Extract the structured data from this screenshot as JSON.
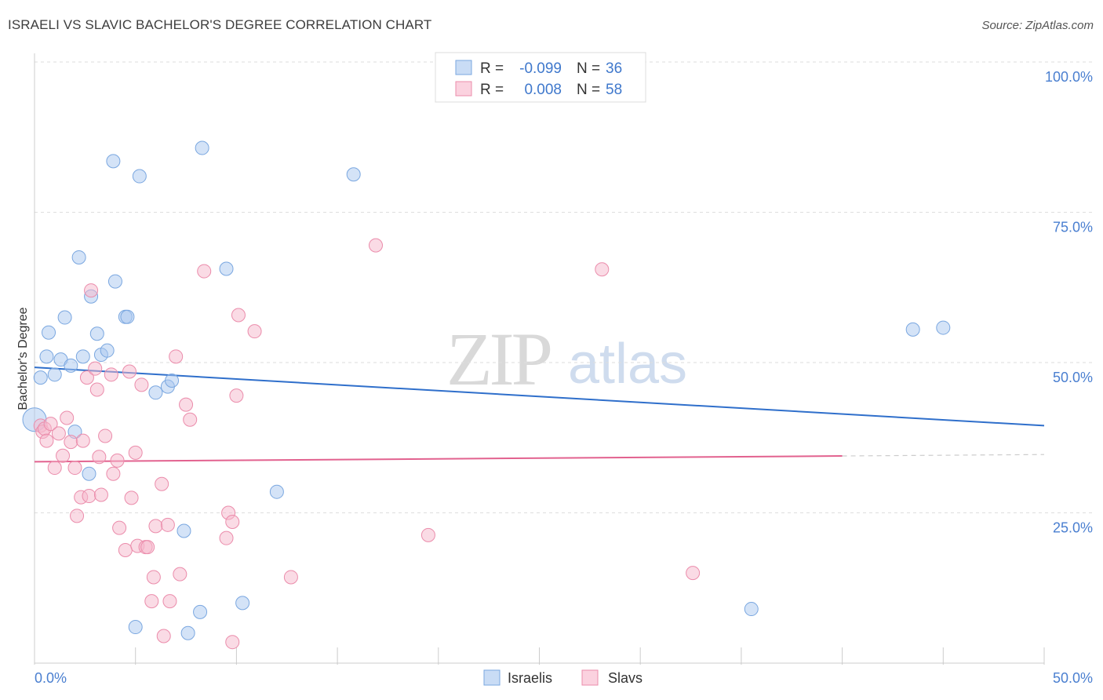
{
  "title": "ISRAELI VS SLAVIC BACHELOR'S DEGREE CORRELATION CHART",
  "source": "Source: ZipAtlas.com",
  "watermark": {
    "zip": "ZIP",
    "atlas": "atlas"
  },
  "legend": {
    "rows": [
      {
        "r_label": "R =",
        "r_value": "-0.099",
        "n_label": "N =",
        "n_value": "36"
      },
      {
        "r_label": "R =",
        "r_value": "0.008",
        "n_label": "N =",
        "n_value": "58"
      }
    ]
  },
  "colors": {
    "israelis_fill": "#a9c8f0",
    "israelis_stroke": "#7aa7e0",
    "israelis_line": "#2f6fcb",
    "slavs_fill": "#f5b8cc",
    "slavs_stroke": "#eb8cab",
    "slavs_line": "#e2628f",
    "grid": "#dedede",
    "tick_text": "#4a7fd0"
  },
  "chart_data": {
    "type": "scatter",
    "xlabel": "",
    "ylabel": "Bachelor's Degree",
    "xlim": [
      0,
      50
    ],
    "ylim": [
      0,
      100
    ],
    "x_tick_labels": [
      "0.0%",
      "50.0%"
    ],
    "y_ticks": [
      25,
      50,
      75,
      100
    ],
    "y_tick_labels": [
      "25.0%",
      "50.0%",
      "75.0%",
      "100.0%"
    ],
    "grid": true,
    "legend_position": "top-center",
    "series": [
      {
        "name": "Israelis",
        "points": [
          [
            0.0,
            40.5
          ],
          [
            0.3,
            47.5
          ],
          [
            0.6,
            51.0
          ],
          [
            0.7,
            55.0
          ],
          [
            1.0,
            48.0
          ],
          [
            1.3,
            50.5
          ],
          [
            1.5,
            57.5
          ],
          [
            1.8,
            49.5
          ],
          [
            2.0,
            38.5
          ],
          [
            2.2,
            67.5
          ],
          [
            2.4,
            51.0
          ],
          [
            2.7,
            31.5
          ],
          [
            2.8,
            61.0
          ],
          [
            3.1,
            54.8
          ],
          [
            3.3,
            51.3
          ],
          [
            3.6,
            52.0
          ],
          [
            3.9,
            83.5
          ],
          [
            4.0,
            63.5
          ],
          [
            4.5,
            57.6
          ],
          [
            4.6,
            57.6
          ],
          [
            5.2,
            81.0
          ],
          [
            5.0,
            6.0
          ],
          [
            6.0,
            45.0
          ],
          [
            6.6,
            46.0
          ],
          [
            6.8,
            47.0
          ],
          [
            7.4,
            22.0
          ],
          [
            7.6,
            5.0
          ],
          [
            8.2,
            8.5
          ],
          [
            8.3,
            85.7
          ],
          [
            9.5,
            65.6
          ],
          [
            10.3,
            10.0
          ],
          [
            12.0,
            28.5
          ],
          [
            15.8,
            81.3
          ],
          [
            35.5,
            9.0
          ],
          [
            43.5,
            55.5
          ],
          [
            45.0,
            55.8
          ]
        ]
      },
      {
        "name": "Slavs",
        "points": [
          [
            0.3,
            39.5
          ],
          [
            0.4,
            38.5
          ],
          [
            0.5,
            39.0
          ],
          [
            0.6,
            37.0
          ],
          [
            0.8,
            39.8
          ],
          [
            1.0,
            32.5
          ],
          [
            1.2,
            38.2
          ],
          [
            1.4,
            34.5
          ],
          [
            1.6,
            40.8
          ],
          [
            1.8,
            36.8
          ],
          [
            2.0,
            32.5
          ],
          [
            2.1,
            24.5
          ],
          [
            2.3,
            27.6
          ],
          [
            2.4,
            37.0
          ],
          [
            2.6,
            47.5
          ],
          [
            2.7,
            27.8
          ],
          [
            2.8,
            62.0
          ],
          [
            3.0,
            49.0
          ],
          [
            3.1,
            45.5
          ],
          [
            3.2,
            34.3
          ],
          [
            3.3,
            28.0
          ],
          [
            3.5,
            37.8
          ],
          [
            3.8,
            48.0
          ],
          [
            3.9,
            31.5
          ],
          [
            4.1,
            33.7
          ],
          [
            4.2,
            22.5
          ],
          [
            4.5,
            18.8
          ],
          [
            4.7,
            48.5
          ],
          [
            4.8,
            27.5
          ],
          [
            5.0,
            35.0
          ],
          [
            5.1,
            19.5
          ],
          [
            5.3,
            46.3
          ],
          [
            5.5,
            19.3
          ],
          [
            5.6,
            19.3
          ],
          [
            5.8,
            10.3
          ],
          [
            5.9,
            14.3
          ],
          [
            6.0,
            22.8
          ],
          [
            6.3,
            29.8
          ],
          [
            6.4,
            4.5
          ],
          [
            6.6,
            23.0
          ],
          [
            6.7,
            10.3
          ],
          [
            7.0,
            51.0
          ],
          [
            7.2,
            14.8
          ],
          [
            7.5,
            43.0
          ],
          [
            7.7,
            40.5
          ],
          [
            8.4,
            65.2
          ],
          [
            9.5,
            20.8
          ],
          [
            9.6,
            25.0
          ],
          [
            9.8,
            23.5
          ],
          [
            9.8,
            3.5
          ],
          [
            10.0,
            44.5
          ],
          [
            10.1,
            57.9
          ],
          [
            10.9,
            55.2
          ],
          [
            12.7,
            14.3
          ],
          [
            16.9,
            69.5
          ],
          [
            19.5,
            21.3
          ],
          [
            28.1,
            65.5
          ],
          [
            32.6,
            15.0
          ]
        ]
      }
    ],
    "trend_lines": [
      {
        "series": "Israelis",
        "x": [
          0,
          50
        ],
        "y": [
          49.2,
          39.5
        ]
      },
      {
        "series": "Slavs",
        "x": [
          0,
          50
        ],
        "y": [
          33.5,
          34.7
        ],
        "solid_until_x": 40
      }
    ]
  },
  "bottom_legend": [
    "Israelis",
    "Slavs"
  ]
}
